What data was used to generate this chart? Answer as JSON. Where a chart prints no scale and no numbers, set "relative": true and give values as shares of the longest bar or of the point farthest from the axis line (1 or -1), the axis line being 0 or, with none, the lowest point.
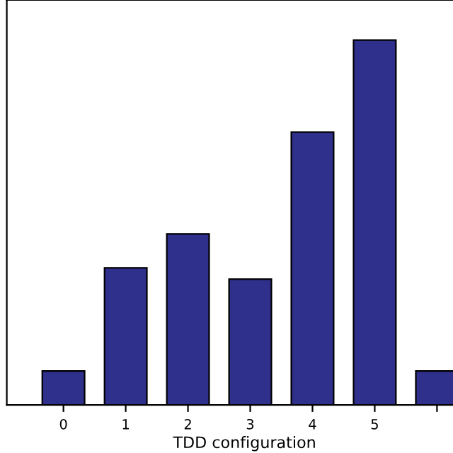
{
  "chart_data": {
    "type": "bar",
    "xlabel": "TDD configuration",
    "categories": [
      "0",
      "1",
      "2",
      "3",
      "4",
      "5",
      null
    ],
    "values": [
      0.093,
      0.376,
      0.469,
      0.345,
      0.748,
      1,
      0.093
    ],
    "color": "#2f2f8c",
    "relative": true,
    "grid": false
  }
}
